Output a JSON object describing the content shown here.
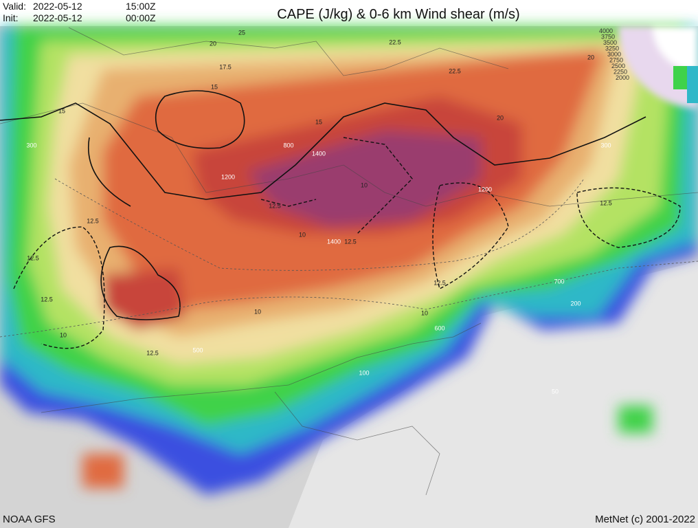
{
  "header": {
    "valid_label": "Valid:",
    "valid_date": "2022-05-12",
    "valid_time": "15:00Z",
    "init_label": "Init:",
    "init_date": "2022-05-12",
    "init_time": "00:00Z",
    "title": "CAPE (J/kg) & 0-6 km Wind shear (m/s)"
  },
  "footer": {
    "source": "NOAA GFS",
    "credit": "MetNet (c) 2001-2022"
  },
  "legend": {
    "labels": [
      "4000",
      "3750",
      "3500",
      "3250",
      "3000",
      "2750",
      "2500",
      "2250",
      "2000"
    ]
  },
  "cape_labels": [
    "300",
    "800",
    "1400",
    "1200",
    "1200",
    "1400",
    "500",
    "600",
    "700",
    "200",
    "100",
    "50",
    "300"
  ],
  "shear_labels": [
    "20",
    "17.5",
    "15",
    "15",
    "15",
    "12.5",
    "12.5",
    "12.5",
    "10",
    "10",
    "10",
    "12.5",
    "12.5",
    "10",
    "10",
    "12.5",
    "12.5",
    "12.5",
    "25",
    "22.5",
    "22.5",
    "20",
    "20"
  ]
}
